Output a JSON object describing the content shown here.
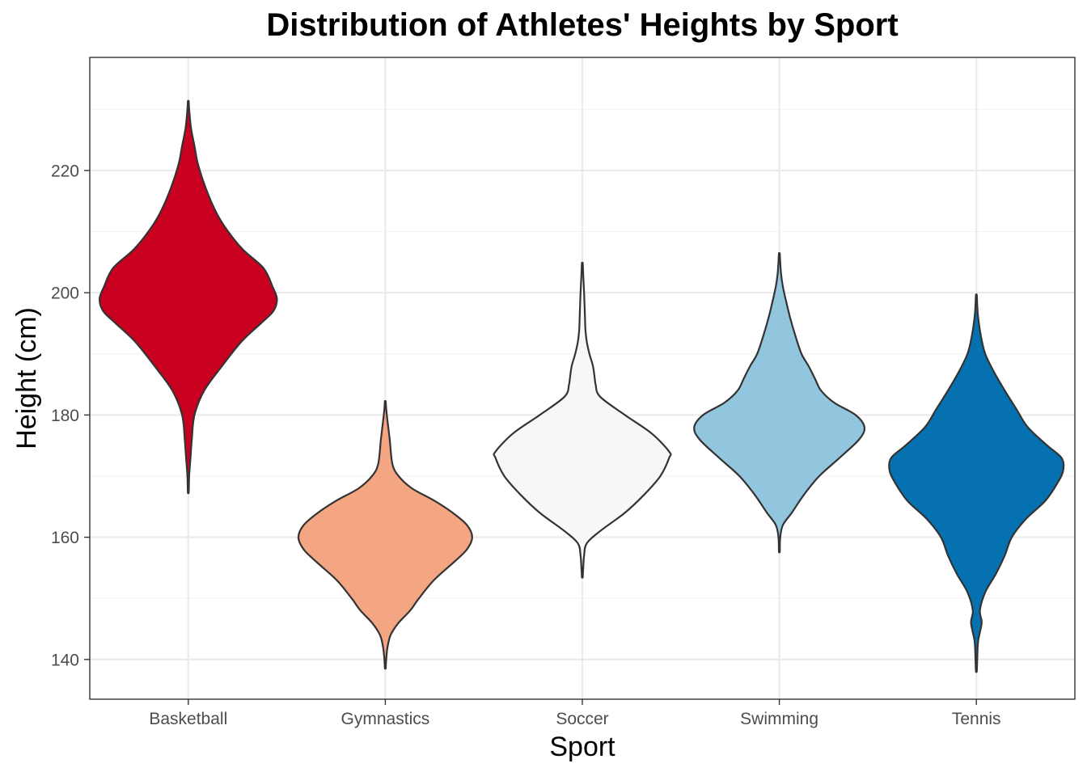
{
  "chart_data": {
    "type": "violin",
    "title": "Distribution of Athletes' Heights by Sport",
    "xlabel": "Sport",
    "ylabel": "Height (cm)",
    "ylim": [
      133.5,
      238.5
    ],
    "y_ticks": [
      140,
      160,
      180,
      200,
      220
    ],
    "grid": true,
    "legend": "none",
    "categories": [
      "Basketball",
      "Gymnastics",
      "Soccer",
      "Swimming",
      "Tennis"
    ],
    "series": [
      {
        "category": "Basketball",
        "color": "#CA0020",
        "density_profile": [
          [
            167.4,
            0.005
          ],
          [
            170,
            0.01
          ],
          [
            173,
            0.025
          ],
          [
            176,
            0.04
          ],
          [
            180,
            0.07
          ],
          [
            184,
            0.18
          ],
          [
            188,
            0.38
          ],
          [
            192,
            0.6
          ],
          [
            195,
            0.82
          ],
          [
            197,
            0.96
          ],
          [
            199,
            1.0
          ],
          [
            201,
            0.95
          ],
          [
            204,
            0.85
          ],
          [
            207,
            0.62
          ],
          [
            210,
            0.45
          ],
          [
            213,
            0.32
          ],
          [
            217,
            0.2
          ],
          [
            221,
            0.11
          ],
          [
            224,
            0.07
          ],
          [
            227,
            0.03
          ],
          [
            230,
            0.01
          ],
          [
            231.3,
            0.005
          ]
        ]
      },
      {
        "category": "Gymnastics",
        "color": "#F4A582",
        "density_profile": [
          [
            138.6,
            0.005
          ],
          [
            140,
            0.01
          ],
          [
            142,
            0.025
          ],
          [
            144,
            0.06
          ],
          [
            146,
            0.15
          ],
          [
            148,
            0.28
          ],
          [
            150,
            0.38
          ],
          [
            153,
            0.55
          ],
          [
            156,
            0.78
          ],
          [
            158,
            0.92
          ],
          [
            160,
            0.98
          ],
          [
            162,
            0.92
          ],
          [
            164,
            0.76
          ],
          [
            166,
            0.55
          ],
          [
            168,
            0.3
          ],
          [
            170,
            0.15
          ],
          [
            172,
            0.08
          ],
          [
            176,
            0.05
          ],
          [
            179,
            0.025
          ],
          [
            181,
            0.01
          ],
          [
            182.2,
            0.005
          ]
        ]
      },
      {
        "category": "Soccer",
        "color": "#F7F7F7",
        "density_profile": [
          [
            153.5,
            0.005
          ],
          [
            155,
            0.01
          ],
          [
            157,
            0.02
          ],
          [
            159,
            0.05
          ],
          [
            161,
            0.2
          ],
          [
            164,
            0.48
          ],
          [
            167,
            0.7
          ],
          [
            170,
            0.88
          ],
          [
            173,
            0.98
          ],
          [
            174,
            0.98
          ],
          [
            177,
            0.78
          ],
          [
            180,
            0.48
          ],
          [
            183,
            0.2
          ],
          [
            185,
            0.15
          ],
          [
            186,
            0.14
          ],
          [
            188,
            0.12
          ],
          [
            190,
            0.08
          ],
          [
            192,
            0.05
          ],
          [
            194,
            0.035
          ],
          [
            196,
            0.03
          ],
          [
            198,
            0.025
          ],
          [
            200,
            0.02
          ],
          [
            203,
            0.01
          ],
          [
            204.8,
            0.005
          ]
        ]
      },
      {
        "category": "Swimming",
        "color": "#92C5DE",
        "density_profile": [
          [
            157.7,
            0.005
          ],
          [
            160,
            0.01
          ],
          [
            162,
            0.04
          ],
          [
            164,
            0.14
          ],
          [
            167,
            0.28
          ],
          [
            170,
            0.45
          ],
          [
            173,
            0.68
          ],
          [
            176,
            0.9
          ],
          [
            178,
            0.96
          ],
          [
            180,
            0.86
          ],
          [
            182,
            0.62
          ],
          [
            184,
            0.47
          ],
          [
            186,
            0.4
          ],
          [
            188,
            0.33
          ],
          [
            190,
            0.25
          ],
          [
            193,
            0.18
          ],
          [
            196,
            0.12
          ],
          [
            199,
            0.07
          ],
          [
            201,
            0.04
          ],
          [
            203,
            0.02
          ],
          [
            205,
            0.01
          ],
          [
            206.4,
            0.005
          ]
        ]
      },
      {
        "category": "Tennis",
        "color": "#0571B0",
        "density_profile": [
          [
            138.1,
            0.005
          ],
          [
            140,
            0.01
          ],
          [
            143,
            0.02
          ],
          [
            146,
            0.06
          ],
          [
            148,
            0.04
          ],
          [
            151,
            0.1
          ],
          [
            154,
            0.22
          ],
          [
            157,
            0.32
          ],
          [
            160,
            0.4
          ],
          [
            163,
            0.56
          ],
          [
            166,
            0.78
          ],
          [
            169,
            0.92
          ],
          [
            171,
            0.98
          ],
          [
            173,
            0.96
          ],
          [
            175,
            0.8
          ],
          [
            178,
            0.58
          ],
          [
            181,
            0.45
          ],
          [
            184,
            0.32
          ],
          [
            187,
            0.2
          ],
          [
            190,
            0.1
          ],
          [
            193,
            0.05
          ],
          [
            196,
            0.02
          ],
          [
            198,
            0.01
          ],
          [
            199.6,
            0.005
          ]
        ]
      }
    ]
  }
}
